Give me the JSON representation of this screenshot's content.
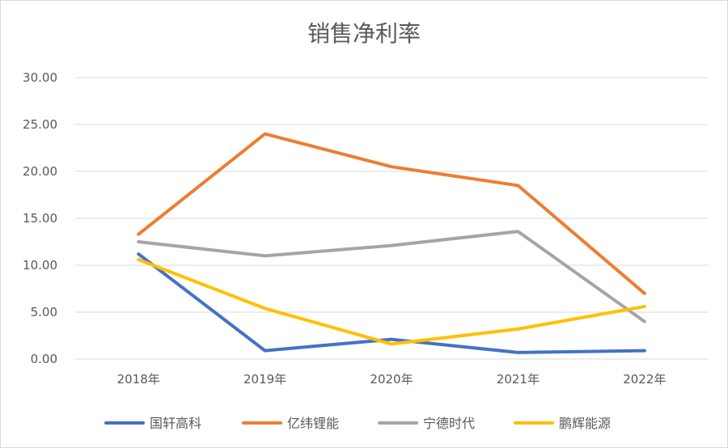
{
  "chart_data": {
    "type": "line",
    "title": "销售净利率",
    "xlabel": "",
    "ylabel": "",
    "categories": [
      "2018年",
      "2019年",
      "2020年",
      "2021年",
      "2022年"
    ],
    "ylim": [
      0,
      30
    ],
    "yticks": [
      "0.00",
      "5.00",
      "10.00",
      "15.00",
      "20.00",
      "25.00",
      "30.00"
    ],
    "grid": true,
    "legend_position": "bottom",
    "series": [
      {
        "name": "国轩高科",
        "color": "#4472C4",
        "values": [
          11.2,
          0.9,
          2.1,
          0.7,
          0.9
        ]
      },
      {
        "name": "亿纬锂能",
        "color": "#ED7D31",
        "values": [
          13.3,
          24.0,
          20.5,
          18.5,
          7.0
        ]
      },
      {
        "name": "宁德时代",
        "color": "#A5A5A5",
        "values": [
          12.5,
          11.0,
          12.1,
          13.6,
          4.0
        ]
      },
      {
        "name": "鹏辉能源",
        "color": "#FFC000",
        "values": [
          10.6,
          5.4,
          1.6,
          3.2,
          5.6
        ]
      }
    ]
  }
}
